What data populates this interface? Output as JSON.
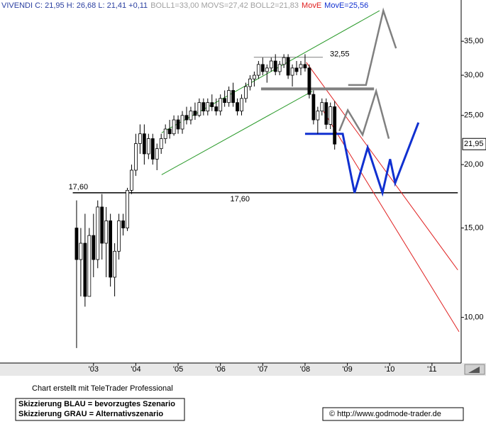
{
  "chart_data": {
    "type": "candlestick",
    "header": [
      {
        "text": "VIVENDI C: 21,95 H: 26,68 L: 21,41 +0,11",
        "color": "#2a3fa0"
      },
      {
        "text": "BOLL1=33,00 MOVS=27,42 BOLL2=21,83",
        "color": "#a0a0a0"
      },
      {
        "text": "MovE",
        "color": "#e02020"
      },
      {
        "text": "MovE=25,56",
        "color": "#1030d0"
      }
    ],
    "x": [
      2002.6,
      2002.7,
      2002.8,
      2002.9,
      2003.0,
      2003.1,
      2003.2,
      2003.3,
      2003.4,
      2003.5,
      2003.6,
      2003.7,
      2003.8,
      2003.9,
      2004.0,
      2004.1,
      2004.2,
      2004.3,
      2004.4,
      2004.5,
      2004.6,
      2004.7,
      2004.8,
      2004.9,
      2005.0,
      2005.1,
      2005.2,
      2005.3,
      2005.4,
      2005.5,
      2005.6,
      2005.7,
      2005.8,
      2005.9,
      2006.0,
      2006.1,
      2006.2,
      2006.3,
      2006.4,
      2006.5,
      2006.6,
      2006.7,
      2006.8,
      2006.9,
      2007.0,
      2007.1,
      2007.2,
      2007.3,
      2007.4,
      2007.5,
      2007.6,
      2007.7,
      2007.8,
      2007.9,
      2008.0,
      2008.1,
      2008.2,
      2008.3,
      2008.4,
      2008.5,
      2008.6,
      2008.7
    ],
    "open": [
      15,
      13,
      14,
      11,
      14.5,
      13,
      16.5,
      14,
      15.5,
      12,
      13.5,
      15.5,
      15,
      17.8,
      19.5,
      22,
      23,
      21,
      22.5,
      20.5,
      21.5,
      22.5,
      23.5,
      23,
      24.5,
      23.5,
      25,
      24.5,
      25.5,
      25,
      26.5,
      25.5,
      26.5,
      26,
      25.5,
      27,
      26.5,
      28,
      26.5,
      25.5,
      27,
      28.5,
      29.5,
      30,
      31.5,
      30.5,
      31,
      32,
      30.5,
      31.5,
      32.5,
      30,
      31,
      31,
      31.5,
      31,
      27.5,
      24.5,
      25.5,
      26.5,
      24,
      26
    ],
    "high": [
      17,
      15,
      16,
      15,
      16,
      17,
      17.5,
      16.5,
      16,
      14,
      16,
      16,
      18,
      20,
      23,
      24,
      24,
      23,
      23,
      22,
      23,
      24,
      24.5,
      25,
      25,
      25.5,
      26,
      26,
      26.5,
      27,
      27,
      27,
      27.5,
      27,
      27.5,
      28,
      28.5,
      29,
      27,
      27.5,
      29,
      30,
      30.5,
      32,
      32.5,
      31.5,
      32.5,
      33,
      32,
      33,
      33,
      31.5,
      32,
      32,
      33,
      31.5,
      28,
      26,
      27,
      27,
      26.5,
      26.68
    ],
    "low": [
      8.7,
      11,
      10.5,
      11,
      12,
      12.5,
      13,
      12,
      11.5,
      11,
      13,
      14.5,
      14.8,
      17.5,
      19,
      21,
      20,
      20.5,
      20,
      19.5,
      21,
      22,
      22.5,
      22.8,
      23,
      23,
      24,
      24,
      24.5,
      24.8,
      25,
      25,
      25.5,
      25,
      25,
      26,
      26,
      26,
      25,
      25,
      26.5,
      28,
      28.5,
      29.5,
      30,
      29,
      30.5,
      30,
      30,
      31,
      29.5,
      28.5,
      30,
      30,
      30.5,
      27,
      24,
      23,
      25,
      23.5,
      23.5,
      21.41
    ],
    "close": [
      13,
      14,
      11,
      14.5,
      13,
      16.5,
      14,
      15.5,
      12,
      13.5,
      15.5,
      15,
      17.8,
      19.5,
      22,
      23,
      21,
      22.5,
      20.5,
      21.5,
      22.5,
      23.5,
      23,
      24.5,
      23.5,
      25,
      24.5,
      25.5,
      25,
      26.5,
      25.5,
      26.5,
      26,
      25.5,
      27,
      26.5,
      28,
      26.5,
      25.5,
      27,
      28.5,
      29.5,
      30,
      31.5,
      30.5,
      31,
      32,
      30.5,
      31.5,
      32.5,
      30,
      31,
      30.5,
      31.5,
      31,
      27.5,
      24.5,
      25.5,
      26.5,
      24,
      26,
      21.95
    ],
    "last": {
      "value": 21.95,
      "label": "21,95"
    },
    "overlays": [
      {
        "x": [
          2002.51,
          2011.61
        ],
        "y": [
          17.6,
          17.6
        ],
        "color": "#000000",
        "width": 1.6,
        "labels": [
          "17,60",
          "17,60"
        ]
      },
      {
        "x": [
          2006.79,
          2008.42
        ],
        "y": [
          32.55,
          32.55
        ],
        "color": "#808080",
        "width": 1,
        "labels": [
          "32,55"
        ]
      },
      {
        "x": [
          2004.61,
          2009.76
        ],
        "y": [
          23.1,
          40.2
        ],
        "color": "#2a9a2a",
        "width": 1
      },
      {
        "x": [
          2004.61,
          2008.17
        ],
        "y": [
          19.1,
          27.9
        ],
        "color": "#2a9a2a",
        "width": 1
      },
      {
        "x": [
          2008.03,
          2011.61
        ],
        "y": [
          31.8,
          12.4
        ],
        "color": "#e02020",
        "width": 1
      },
      {
        "x": [
          2008.42,
          2011.64
        ],
        "y": [
          25.6,
          9.37
        ],
        "color": "#e02020",
        "width": 1
      },
      {
        "x": [
          2006.96,
          2009.63
        ],
        "y": [
          28.2,
          28.2
        ],
        "color": "#808080",
        "width": 4
      },
      {
        "x": [
          2008.81,
          2009.01,
          2009.36,
          2009.68,
          2009.98
        ],
        "y": [
          23.3,
          25.6,
          22.9,
          27.9,
          22.5
        ],
        "color": "#808080",
        "width": 2.5
      },
      {
        "x": [
          2009.02,
          2009.44,
          2009.85,
          2010.15
        ],
        "y": [
          28.7,
          28.7,
          40.2,
          33.9
        ],
        "color": "#808080",
        "width": 2.5
      },
      {
        "x": [
          2008.0,
          2008.89,
          2009.17,
          2009.48,
          2009.83,
          2010.01,
          2010.13,
          2010.68
        ],
        "y": [
          23.0,
          23.0,
          17.6,
          21.6,
          17.6,
          20.5,
          18.4,
          24.2
        ],
        "color": "#1030d0",
        "width": 3
      }
    ],
    "log_y": true,
    "xlim": [
      2000.79,
      2011.69
    ],
    "ylim": [
      8.13,
      42.2
    ],
    "xticks": [
      {
        "value": 2003,
        "label": "'03"
      },
      {
        "value": 2004,
        "label": "'04"
      },
      {
        "value": 2005,
        "label": "'05"
      },
      {
        "value": 2006,
        "label": "'06"
      },
      {
        "value": 2007,
        "label": "'07"
      },
      {
        "value": 2008,
        "label": "'08"
      },
      {
        "value": 2009,
        "label": "'09"
      },
      {
        "value": 2010,
        "label": "'10"
      },
      {
        "value": 2011,
        "label": "'11"
      }
    ],
    "yticks": [
      {
        "value": 10,
        "label": "10,00"
      },
      {
        "value": 15,
        "label": "15,00"
      },
      {
        "value": 20,
        "label": "20,00"
      },
      {
        "value": 25,
        "label": "25,00"
      },
      {
        "value": 30,
        "label": "30,00"
      },
      {
        "value": 35,
        "label": "35,00"
      }
    ]
  },
  "footer": {
    "credit": "Chart erstellt mit TeleTrader Professional",
    "legend_blue": "Skizzierung BLAU = bevorzugtes Szenario",
    "legend_grey": "Skizzierung GRAU = Alternativszenario",
    "url": "© http://www.godmode-trader.de"
  }
}
